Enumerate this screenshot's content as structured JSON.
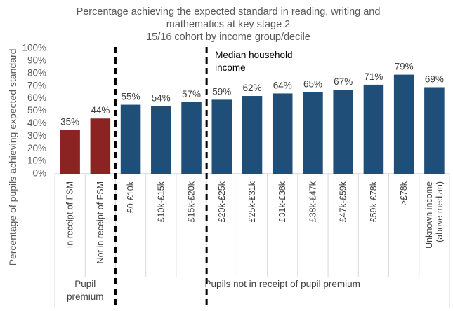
{
  "chart_data": {
    "type": "bar",
    "title_lines": [
      "Percentage achieving the expected standard in reading, writing and",
      "mathematics at key stage 2",
      "15/16 cohort by income group/decile"
    ],
    "ylabel": "Percentage of pupils achieving expected standard",
    "ylim": [
      0,
      100
    ],
    "yticks": [
      "0%",
      "10%",
      "20%",
      "30%",
      "40%",
      "50%",
      "60%",
      "70%",
      "80%",
      "90%",
      "100%"
    ],
    "grid": false,
    "categories": [
      "In receipt of FSM",
      "Not in receipt of FSM",
      "£0-£10k",
      "£10k-£15k",
      "£15k-£20k",
      "£20k-£25k",
      "£25k-£31k",
      "£31k-£38k",
      "£38k-£47k",
      "£47k-£59k",
      "£59k-£78k",
      ">£78k",
      "Unknown income|(above median)"
    ],
    "values": [
      35,
      44,
      55,
      54,
      57,
      59,
      62,
      64,
      65,
      67,
      71,
      79,
      69
    ],
    "value_labels": [
      "35%",
      "44%",
      "55%",
      "54%",
      "57%",
      "59%",
      "62%",
      "64%",
      "65%",
      "67%",
      "71%",
      "79%",
      "69%"
    ],
    "bar_colors": [
      "#8b2323",
      "#8b2323",
      "#1f4e79",
      "#1f4e79",
      "#1f4e79",
      "#1f4e79",
      "#1f4e79",
      "#1f4e79",
      "#1f4e79",
      "#1f4e79",
      "#1f4e79",
      "#1f4e79",
      "#1f4e79"
    ],
    "groups": [
      {
        "label_lines": [
          "Pupil",
          "premium"
        ],
        "first": 0,
        "last": 1
      },
      {
        "label_lines": [
          "Pupils not in receipt of pupil premium"
        ],
        "first": 2,
        "last": 12
      }
    ],
    "dividers": [
      {
        "after_index": 1,
        "label_lines": []
      },
      {
        "after_index": 4,
        "label_lines": [
          "Median household",
          "income"
        ]
      }
    ]
  }
}
